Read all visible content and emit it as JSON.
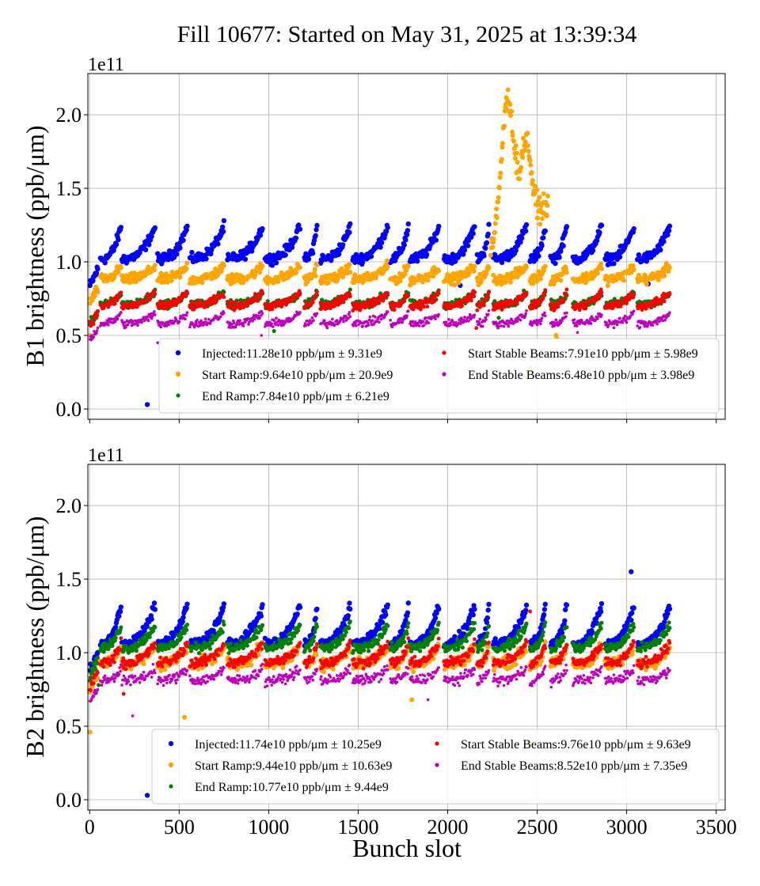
{
  "chart_data": {
    "type": "scatter",
    "title": "Fill 10677: Started on May 31, 2025 at 13:39:34",
    "xlabel": "Bunch slot",
    "xlim": [
      -10,
      3550
    ],
    "xticks": [
      0,
      500,
      1000,
      1500,
      2000,
      2500,
      3000,
      3500
    ],
    "grid": true,
    "panels": [
      {
        "id": "B1",
        "ylabel": "B1 brightness (ppb/μm)",
        "offset_label": "1e11",
        "ylim": [
          -0.07,
          2.28
        ],
        "yticks": [
          0.0,
          0.5,
          1.0,
          1.5,
          2.0
        ],
        "legend_position": "lower-right",
        "series": [
          {
            "name": "Injected:11.28e10 ppb/μm ± 9.31e9",
            "color": "#0000ff",
            "base": 1.02,
            "ramp": 0.22,
            "spread": 0.05,
            "outliers": [
              [
                322,
                0.03
              ],
              [
                3120,
                0.85
              ],
              [
                2070,
                0.84
              ]
            ]
          },
          {
            "name": "Start Ramp:9.64e10 ppb/μm ± 20.9e9",
            "color": "#ffa500",
            "base": 0.88,
            "ramp": 0.09,
            "spread": 0.05,
            "outliers": [
              [
                2,
                0.5
              ],
              [
                2605,
                0.5
              ],
              [
                2610,
                0.48
              ],
              [
                2460,
                0.28
              ]
            ]
          },
          {
            "name": "End Ramp:7.84e10 ppb/μm ± 6.21e9",
            "color": "#008000",
            "base": 0.71,
            "ramp": 0.08,
            "spread": 0.04,
            "outliers": [
              [
                1030,
                0.53
              ],
              [
                2285,
                0.62
              ]
            ]
          },
          {
            "name": "Start Stable Beams:7.91e10 ppb/μm ± 5.98e9",
            "color": "#ff0000",
            "base": 0.7,
            "ramp": 0.09,
            "spread": 0.04,
            "outliers": [
              [
                2160,
                0.55
              ]
            ]
          },
          {
            "name": "End Stable Beams:6.48e10 ppb/μm ± 3.98e9",
            "color": "#bf00bf",
            "base": 0.58,
            "ramp": 0.07,
            "spread": 0.04,
            "outliers": [
              [
                380,
                0.45
              ],
              [
                960,
                0.5
              ],
              [
                2725,
                0.52
              ]
            ]
          }
        ],
        "spike": {
          "x_range": [
            2240,
            2560
          ],
          "peak": 2.17,
          "color": "#ffa500"
        }
      },
      {
        "id": "B2",
        "ylabel": "B2 brightness (ppb/μm)",
        "offset_label": "1e11",
        "ylim": [
          -0.07,
          2.28
        ],
        "yticks": [
          0.0,
          0.5,
          1.0,
          1.5,
          2.0
        ],
        "legend_position": "lower-right",
        "series": [
          {
            "name": "Injected:11.74e10 ppb/μm ± 10.25e9",
            "color": "#0000ff",
            "base": 1.06,
            "ramp": 0.26,
            "spread": 0.05,
            "outliers": [
              [
                322,
                0.03
              ],
              [
                3025,
                1.55
              ]
            ]
          },
          {
            "name": "Start Ramp:9.44e10 ppb/μm ± 10.63e9",
            "color": "#ffa500",
            "base": 0.92,
            "ramp": 0.12,
            "spread": 0.06,
            "outliers": [
              [
                2,
                0.46
              ],
              [
                530,
                0.56
              ],
              [
                2460,
                0.38
              ],
              [
                1800,
                0.68
              ]
            ]
          },
          {
            "name": "End Ramp:10.77e10 ppb/μm ± 9.44e9",
            "color": "#008000",
            "base": 1.03,
            "ramp": 0.16,
            "spread": 0.05,
            "outliers": [
              [
                50,
                0.78
              ]
            ]
          },
          {
            "name": "Start Stable Beams:9.76e10 ppb/μm ± 9.63e9",
            "color": "#ff0000",
            "base": 0.93,
            "ramp": 0.13,
            "spread": 0.05,
            "outliers": [
              [
                190,
                0.72
              ],
              [
                2460,
                1.28
              ]
            ]
          },
          {
            "name": "End Stable Beams:8.52e10 ppb/μm ± 7.35e9",
            "color": "#bf00bf",
            "base": 0.81,
            "ramp": 0.08,
            "spread": 0.05,
            "outliers": [
              [
                240,
                0.57
              ],
              [
                1890,
                0.68
              ]
            ]
          }
        ]
      }
    ],
    "trains": [
      [
        60,
        175
      ],
      [
        180,
        365
      ],
      [
        380,
        545
      ],
      [
        560,
        750
      ],
      [
        770,
        965
      ],
      [
        980,
        1175
      ],
      [
        1200,
        1270
      ],
      [
        1290,
        1455
      ],
      [
        1470,
        1665
      ],
      [
        1680,
        1780
      ],
      [
        1790,
        1950
      ],
      [
        1980,
        2150
      ],
      [
        2165,
        2230
      ],
      [
        2255,
        2440
      ],
      [
        2460,
        2545
      ],
      [
        2575,
        2665
      ],
      [
        2700,
        2860
      ],
      [
        2880,
        3040
      ],
      [
        3060,
        3240
      ]
    ]
  }
}
